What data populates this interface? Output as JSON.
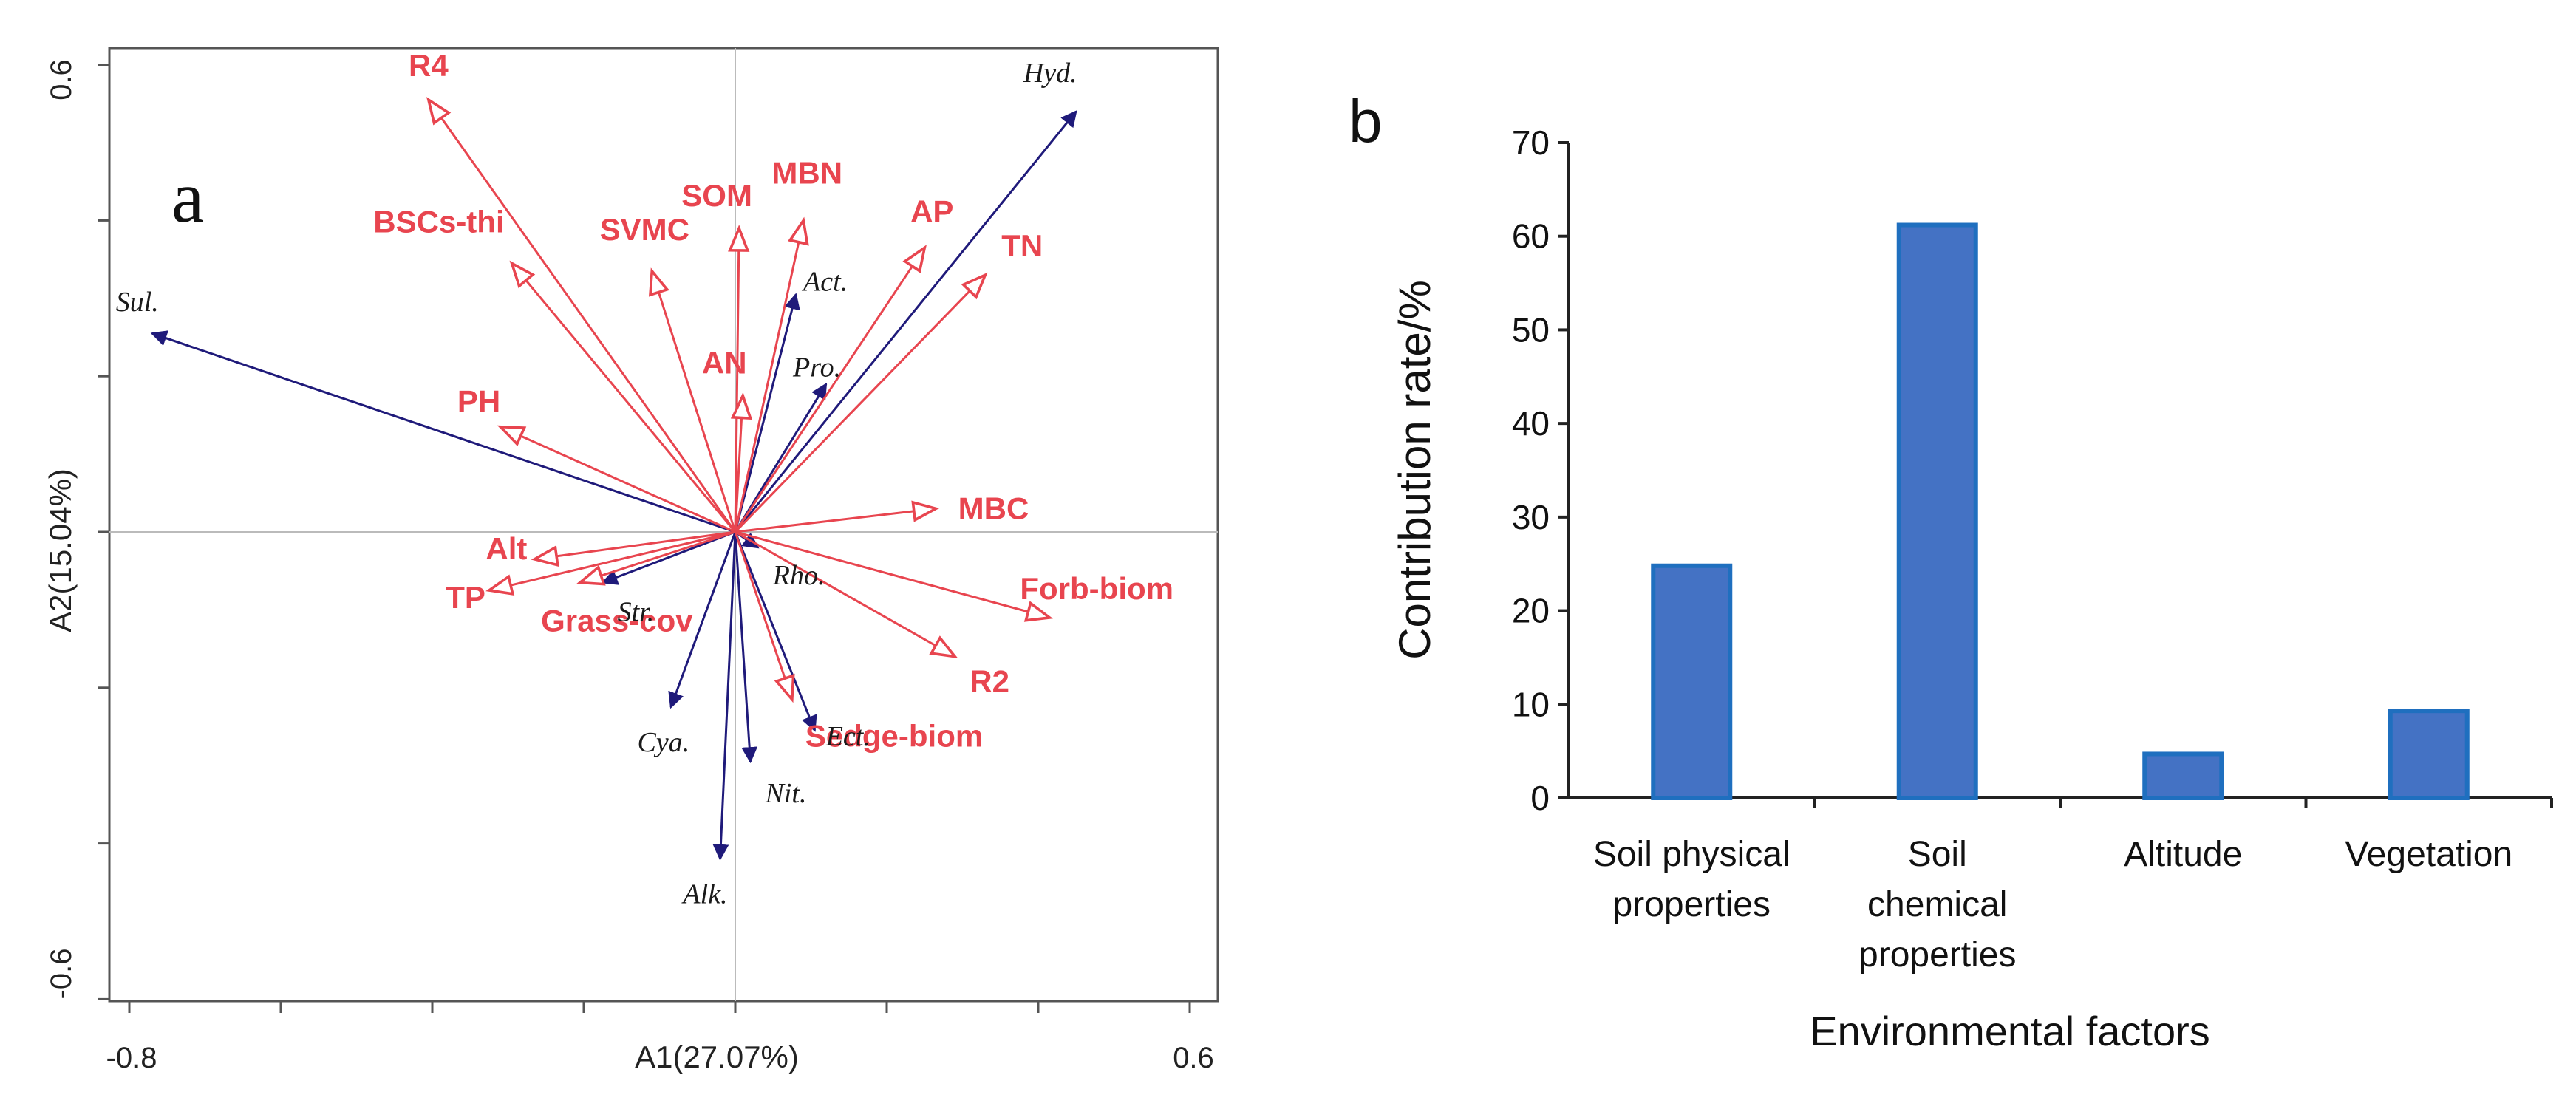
{
  "colors": {
    "environment_arrow": "#e8454f",
    "species_arrow": "#1f1a7a",
    "bar_fill": "#4472c4",
    "bar_edge": "#1f6fbf",
    "axis": "#333333",
    "gridline": "#bbbbbb"
  },
  "chart_data": [
    {
      "type": "scatter",
      "subtype": "rda-biplot",
      "panel_label": "a",
      "xlabel": "A1(27.07%)",
      "ylabel": "A2(15.04%)",
      "xlim": [
        -0.8,
        0.6
      ],
      "ylim": [
        -0.6,
        0.6
      ],
      "x_tick_labels": [
        "-0.8",
        "0.6"
      ],
      "y_tick_labels": [
        "0.6",
        "-0.6"
      ],
      "environment_vectors": [
        {
          "name": "R4",
          "x": -0.405,
          "y": 0.555
        },
        {
          "name": "BSCs-thi",
          "x": -0.295,
          "y": 0.345
        },
        {
          "name": "SVMC",
          "x": -0.11,
          "y": 0.335
        },
        {
          "name": "SOM",
          "x": 0.005,
          "y": 0.39
        },
        {
          "name": "MBN",
          "x": 0.09,
          "y": 0.4
        },
        {
          "name": "AN",
          "x": 0.01,
          "y": 0.175
        },
        {
          "name": "AP",
          "x": 0.25,
          "y": 0.365
        },
        {
          "name": "TN",
          "x": 0.33,
          "y": 0.33
        },
        {
          "name": "PH",
          "x": -0.31,
          "y": 0.135
        },
        {
          "name": "MBC",
          "x": 0.265,
          "y": 0.03
        },
        {
          "name": "Alt",
          "x": -0.265,
          "y": -0.035
        },
        {
          "name": "TP",
          "x": -0.325,
          "y": -0.075
        },
        {
          "name": "Grass-cov",
          "x": -0.205,
          "y": -0.065
        },
        {
          "name": "Forb-biom",
          "x": 0.415,
          "y": -0.11
        },
        {
          "name": "R2",
          "x": 0.29,
          "y": -0.16
        },
        {
          "name": "Sedge-biom",
          "x": 0.075,
          "y": -0.215
        }
      ],
      "species_vectors": [
        {
          "name": "Hyd.",
          "x": 0.45,
          "y": 0.54
        },
        {
          "name": "Sul.",
          "x": -0.77,
          "y": 0.255
        },
        {
          "name": "Act.",
          "x": 0.08,
          "y": 0.305
        },
        {
          "name": "Pro.",
          "x": 0.12,
          "y": 0.19
        },
        {
          "name": "Rho.",
          "x": 0.03,
          "y": -0.02
        },
        {
          "name": "Str.",
          "x": -0.175,
          "y": -0.065
        },
        {
          "name": "Ect.",
          "x": 0.105,
          "y": -0.255
        },
        {
          "name": "Cya.",
          "x": -0.085,
          "y": -0.225
        },
        {
          "name": "Nit.",
          "x": 0.02,
          "y": -0.295
        },
        {
          "name": "Alk.",
          "x": -0.02,
          "y": -0.42
        }
      ]
    },
    {
      "type": "bar",
      "panel_label": "b",
      "categories": [
        [
          "Soil physical",
          "properties"
        ],
        [
          "Soil",
          "chemical",
          "properties"
        ],
        [
          "Altitude"
        ],
        [
          "Vegetation"
        ]
      ],
      "values": [
        24.8,
        61.2,
        4.7,
        9.3
      ],
      "xlabel": "Environmental factors",
      "ylabel": "Contribution rate/%",
      "ylim": [
        0,
        70
      ],
      "yticks": [
        "0",
        "10",
        "20",
        "30",
        "40",
        "50",
        "60",
        "70"
      ]
    }
  ]
}
